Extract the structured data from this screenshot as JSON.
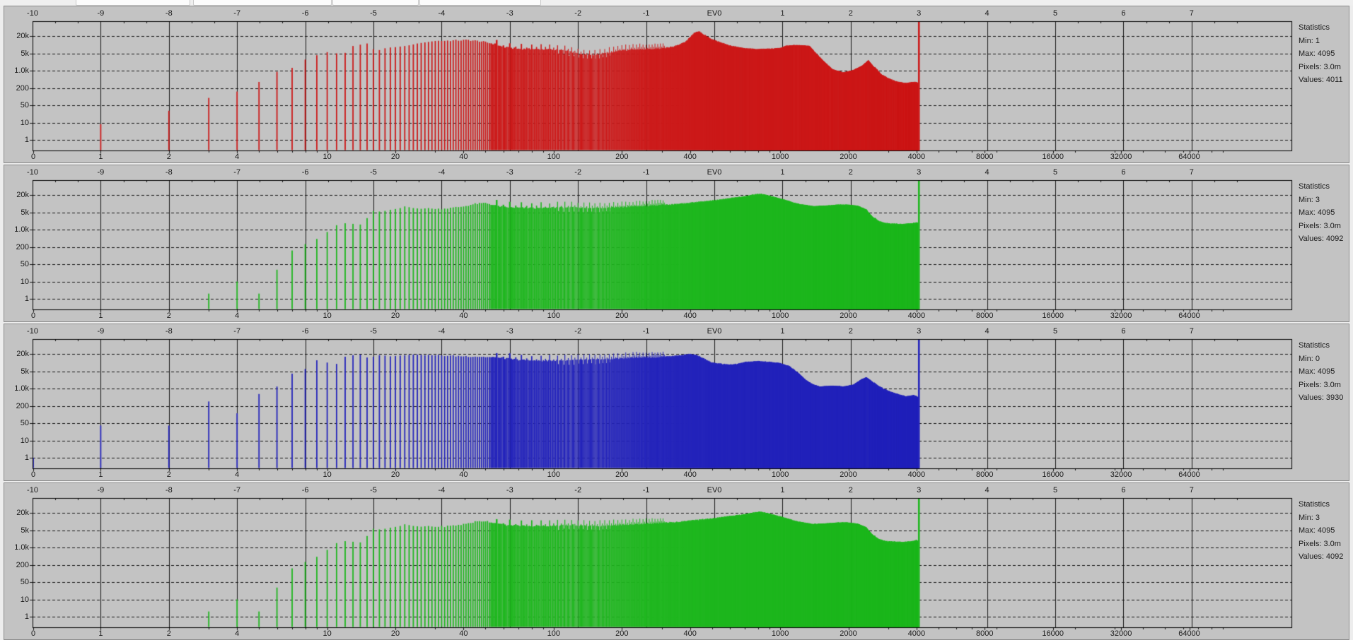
{
  "axes": {
    "top_ev": {
      "title": "exposure (EV) axis",
      "ticks": [
        [
          "-10",
          -10
        ],
        [
          "-9",
          -9
        ],
        [
          "-8",
          -8
        ],
        [
          "-7",
          -7
        ],
        [
          "-6",
          -6
        ],
        [
          "-5",
          -5
        ],
        [
          "-4",
          -4
        ],
        [
          "-3",
          -3
        ],
        [
          "-2",
          -2
        ],
        [
          "-1",
          -1
        ],
        [
          "EV0",
          0
        ],
        [
          "1",
          1
        ],
        [
          "2",
          2
        ],
        [
          "3",
          3
        ],
        [
          "4",
          4
        ],
        [
          "5",
          5
        ],
        [
          "6",
          6
        ],
        [
          "7",
          7
        ]
      ]
    },
    "left_counts": {
      "title": "pixel count axis (log)",
      "ticks": [
        [
          "20k",
          20000
        ],
        [
          "5k",
          5000
        ],
        [
          "1.0k",
          1000
        ],
        [
          "200",
          200
        ],
        [
          "50",
          50
        ],
        [
          "10",
          10
        ],
        [
          "1",
          1
        ]
      ]
    },
    "bottom_values": {
      "title": "raw value axis (log)",
      "ticks": [
        [
          "0",
          0
        ],
        [
          "1",
          1
        ],
        [
          "2",
          2
        ],
        [
          "4",
          4
        ],
        [
          "10",
          10
        ],
        [
          "20",
          20
        ],
        [
          "40",
          40
        ],
        [
          "100",
          100
        ],
        [
          "200",
          200
        ],
        [
          "400",
          400
        ],
        [
          "1000",
          1000
        ],
        [
          "2000",
          2000
        ],
        [
          "4000",
          4000
        ],
        [
          "8000",
          8000
        ],
        [
          "16000",
          16000
        ],
        [
          "32000",
          32000
        ],
        [
          "64000",
          64000
        ]
      ]
    }
  },
  "chart_data": [
    {
      "type": "histogram",
      "channel": "red",
      "color": "#cc1a1a",
      "seed": 1,
      "value_min": 1,
      "value_max": 4095,
      "stats_display": {
        "title": "Statistics",
        "min": "Min: 1",
        "max": "Max: 4095",
        "pixels": "Pixels: 3.0m",
        "values": "Values: 4011"
      },
      "spikes": [
        [
          1,
          8
        ],
        [
          2,
          30
        ],
        [
          3,
          90
        ],
        [
          4,
          150
        ],
        [
          5,
          350
        ],
        [
          6,
          900
        ],
        [
          7,
          1300
        ],
        [
          8,
          2800
        ],
        [
          9,
          4200
        ],
        [
          10,
          5500
        ],
        [
          11,
          5000
        ],
        [
          12,
          5200
        ],
        [
          13,
          9000
        ],
        [
          14,
          10000
        ],
        [
          15,
          11000
        ],
        [
          16,
          7000
        ],
        [
          17,
          6500
        ],
        [
          18,
          7500
        ],
        [
          19,
          8000
        ],
        [
          20,
          8200
        ],
        [
          21,
          8600
        ],
        [
          22,
          9000
        ],
        [
          23,
          9500
        ],
        [
          24,
          10200
        ],
        [
          25,
          11000
        ],
        [
          26,
          11500
        ],
        [
          27,
          12000
        ],
        [
          28,
          12500
        ],
        [
          29,
          13000
        ],
        [
          30,
          13500
        ]
      ],
      "envelope": [
        [
          30,
          13500
        ],
        [
          36,
          14000
        ],
        [
          42,
          14500
        ],
        [
          48,
          13000
        ],
        [
          55,
          10500
        ],
        [
          60,
          8200
        ],
        [
          70,
          7200
        ],
        [
          85,
          7000
        ],
        [
          100,
          6800
        ],
        [
          115,
          6000
        ],
        [
          130,
          4800
        ],
        [
          150,
          4300
        ],
        [
          165,
          4800
        ],
        [
          180,
          5400
        ],
        [
          200,
          6300
        ],
        [
          230,
          6800
        ],
        [
          260,
          7000
        ],
        [
          300,
          7300
        ],
        [
          340,
          8500
        ],
        [
          380,
          12000
        ],
        [
          420,
          26000
        ],
        [
          440,
          28000
        ],
        [
          470,
          20000
        ],
        [
          500,
          15000
        ],
        [
          540,
          12000
        ],
        [
          600,
          9000
        ],
        [
          700,
          7200
        ],
        [
          800,
          6800
        ],
        [
          900,
          7000
        ],
        [
          1000,
          7400
        ],
        [
          1060,
          8800
        ],
        [
          1150,
          9300
        ],
        [
          1250,
          9200
        ],
        [
          1350,
          8600
        ],
        [
          1450,
          4500
        ],
        [
          1550,
          2400
        ],
        [
          1700,
          1100
        ],
        [
          1900,
          800
        ],
        [
          2100,
          1000
        ],
        [
          2300,
          1500
        ],
        [
          2450,
          2500
        ],
        [
          2600,
          1300
        ],
        [
          2800,
          620
        ],
        [
          3000,
          430
        ],
        [
          3300,
          310
        ],
        [
          3600,
          270
        ],
        [
          3900,
          310
        ],
        [
          4050,
          290
        ],
        [
          4094,
          260
        ]
      ],
      "clip_spike": [
        4095,
        40000
      ]
    },
    {
      "type": "histogram",
      "channel": "green",
      "color": "#1fb71f",
      "seed": 2,
      "value_min": 3,
      "value_max": 4095,
      "stats_display": {
        "title": "Statistics",
        "min": "Min: 3",
        "max": "Max: 4095",
        "pixels": "Pixels: 3.0m",
        "values": "Values: 4092"
      },
      "spikes": [
        [
          3,
          2
        ],
        [
          4,
          10
        ],
        [
          5,
          2
        ],
        [
          6,
          30
        ],
        [
          7,
          150
        ],
        [
          8,
          260
        ],
        [
          9,
          420
        ],
        [
          10,
          800
        ],
        [
          11,
          1500
        ],
        [
          12,
          1800
        ],
        [
          13,
          1700
        ],
        [
          14,
          1600
        ],
        [
          15,
          2900
        ],
        [
          16,
          5600
        ],
        [
          17,
          5300
        ],
        [
          18,
          5600
        ],
        [
          19,
          6100
        ],
        [
          20,
          6500
        ],
        [
          21,
          7000
        ],
        [
          22,
          8000
        ],
        [
          23,
          7500
        ],
        [
          24,
          7000
        ],
        [
          25,
          6800
        ],
        [
          26,
          6600
        ],
        [
          27,
          6800
        ],
        [
          28,
          7000
        ],
        [
          29,
          6700
        ],
        [
          30,
          6500
        ]
      ],
      "envelope": [
        [
          30,
          6500
        ],
        [
          35,
          7000
        ],
        [
          40,
          8000
        ],
        [
          45,
          9800
        ],
        [
          50,
          10500
        ],
        [
          55,
          8800
        ],
        [
          60,
          7600
        ],
        [
          70,
          7200
        ],
        [
          85,
          7000
        ],
        [
          100,
          7200
        ],
        [
          120,
          7600
        ],
        [
          140,
          7200
        ],
        [
          160,
          7000
        ],
        [
          200,
          7600
        ],
        [
          250,
          8200
        ],
        [
          300,
          8800
        ],
        [
          350,
          9500
        ],
        [
          400,
          10500
        ],
        [
          450,
          11500
        ],
        [
          500,
          12500
        ],
        [
          560,
          14000
        ],
        [
          620,
          15500
        ],
        [
          700,
          17500
        ],
        [
          780,
          20500
        ],
        [
          820,
          21000
        ],
        [
          880,
          19000
        ],
        [
          950,
          16000
        ],
        [
          1050,
          13000
        ],
        [
          1200,
          9500
        ],
        [
          1400,
          7800
        ],
        [
          1600,
          8200
        ],
        [
          1800,
          8800
        ],
        [
          2000,
          8800
        ],
        [
          2200,
          8000
        ],
        [
          2400,
          6000
        ],
        [
          2550,
          3200
        ],
        [
          2700,
          2000
        ],
        [
          2900,
          1600
        ],
        [
          3200,
          1500
        ],
        [
          3500,
          1450
        ],
        [
          3800,
          1550
        ],
        [
          4000,
          1700
        ],
        [
          4094,
          1600
        ]
      ],
      "clip_spike": [
        4095,
        26000
      ]
    },
    {
      "type": "histogram",
      "channel": "blue",
      "color": "#2424bb",
      "seed": 3,
      "value_min": 0,
      "value_max": 4095,
      "stats_display": {
        "title": "Statistics",
        "min": "Min: 0",
        "max": "Max: 4095",
        "pixels": "Pixels: 3.0m",
        "values": "Values: 3930"
      },
      "spikes": [
        [
          0,
          1
        ],
        [
          1,
          40
        ],
        [
          2,
          40
        ],
        [
          3,
          300
        ],
        [
          4,
          110
        ],
        [
          5,
          600
        ],
        [
          6,
          1200
        ],
        [
          7,
          4000
        ],
        [
          8,
          6000
        ],
        [
          9,
          12000
        ],
        [
          10,
          10000
        ],
        [
          11,
          9000
        ],
        [
          12,
          16000
        ],
        [
          13,
          18000
        ],
        [
          14,
          19000
        ],
        [
          15,
          15000
        ],
        [
          16,
          16000
        ],
        [
          17,
          18000
        ],
        [
          18,
          17500
        ],
        [
          19,
          16500
        ],
        [
          20,
          17000
        ],
        [
          21,
          17500
        ],
        [
          22,
          18000
        ],
        [
          23,
          18500
        ],
        [
          24,
          19000
        ],
        [
          25,
          19000
        ],
        [
          26,
          18500
        ],
        [
          27,
          18000
        ],
        [
          28,
          18500
        ],
        [
          29,
          18000
        ],
        [
          30,
          18000
        ]
      ],
      "envelope": [
        [
          30,
          18000
        ],
        [
          36,
          17000
        ],
        [
          42,
          16500
        ],
        [
          48,
          16000
        ],
        [
          55,
          15000
        ],
        [
          60,
          14200
        ],
        [
          70,
          12500
        ],
        [
          85,
          11500
        ],
        [
          100,
          11800
        ],
        [
          120,
          12200
        ],
        [
          140,
          12600
        ],
        [
          170,
          13200
        ],
        [
          200,
          14000
        ],
        [
          240,
          15200
        ],
        [
          280,
          15000
        ],
        [
          320,
          16000
        ],
        [
          360,
          17500
        ],
        [
          400,
          19500
        ],
        [
          430,
          17500
        ],
        [
          470,
          12500
        ],
        [
          500,
          9800
        ],
        [
          550,
          8800
        ],
        [
          600,
          8300
        ],
        [
          650,
          8800
        ],
        [
          700,
          10200
        ],
        [
          800,
          10800
        ],
        [
          900,
          10200
        ],
        [
          1000,
          9200
        ],
        [
          1100,
          7200
        ],
        [
          1200,
          4200
        ],
        [
          1300,
          2100
        ],
        [
          1400,
          1400
        ],
        [
          1500,
          1150
        ],
        [
          1700,
          1250
        ],
        [
          1900,
          1150
        ],
        [
          2100,
          1350
        ],
        [
          2300,
          2300
        ],
        [
          2400,
          2700
        ],
        [
          2500,
          2100
        ],
        [
          2700,
          1150
        ],
        [
          3000,
          700
        ],
        [
          3300,
          520
        ],
        [
          3600,
          420
        ],
        [
          3900,
          470
        ],
        [
          4050,
          400
        ],
        [
          4094,
          350
        ]
      ],
      "clip_spike": [
        4095,
        30000
      ]
    },
    {
      "type": "histogram",
      "channel": "green2",
      "color": "#1fb71f",
      "seed": 4,
      "value_min": 3,
      "value_max": 4095,
      "stats_display": {
        "title": "Statistics",
        "min": "Min: 3",
        "max": "Max: 4095",
        "pixels": "Pixels: 3.0m",
        "values": "Values: 4092"
      },
      "spikes": [
        [
          3,
          2
        ],
        [
          4,
          10
        ],
        [
          5,
          2
        ],
        [
          6,
          30
        ],
        [
          7,
          150
        ],
        [
          8,
          260
        ],
        [
          9,
          420
        ],
        [
          10,
          800
        ],
        [
          11,
          1500
        ],
        [
          12,
          1800
        ],
        [
          13,
          1700
        ],
        [
          14,
          1600
        ],
        [
          15,
          2900
        ],
        [
          16,
          5600
        ],
        [
          17,
          5300
        ],
        [
          18,
          5600
        ],
        [
          19,
          6100
        ],
        [
          20,
          6500
        ],
        [
          21,
          7000
        ],
        [
          22,
          8000
        ],
        [
          23,
          7500
        ],
        [
          24,
          7000
        ],
        [
          25,
          6800
        ],
        [
          26,
          6600
        ],
        [
          27,
          6800
        ],
        [
          28,
          7000
        ],
        [
          29,
          6700
        ],
        [
          30,
          6500
        ]
      ],
      "envelope": [
        [
          30,
          6500
        ],
        [
          35,
          7000
        ],
        [
          40,
          8000
        ],
        [
          45,
          9800
        ],
        [
          50,
          10500
        ],
        [
          55,
          8800
        ],
        [
          60,
          7600
        ],
        [
          70,
          7200
        ],
        [
          85,
          7000
        ],
        [
          100,
          7200
        ],
        [
          120,
          7600
        ],
        [
          140,
          7200
        ],
        [
          160,
          7000
        ],
        [
          200,
          7600
        ],
        [
          250,
          8200
        ],
        [
          300,
          8800
        ],
        [
          350,
          9500
        ],
        [
          400,
          10500
        ],
        [
          450,
          11500
        ],
        [
          500,
          12500
        ],
        [
          560,
          14000
        ],
        [
          620,
          15500
        ],
        [
          700,
          17500
        ],
        [
          780,
          20500
        ],
        [
          820,
          21000
        ],
        [
          880,
          19000
        ],
        [
          950,
          16000
        ],
        [
          1050,
          13000
        ],
        [
          1200,
          9500
        ],
        [
          1400,
          7800
        ],
        [
          1600,
          8200
        ],
        [
          1800,
          8800
        ],
        [
          2000,
          8800
        ],
        [
          2200,
          8000
        ],
        [
          2400,
          6000
        ],
        [
          2550,
          3200
        ],
        [
          2700,
          2000
        ],
        [
          2900,
          1600
        ],
        [
          3200,
          1500
        ],
        [
          3500,
          1450
        ],
        [
          3800,
          1550
        ],
        [
          4000,
          1700
        ],
        [
          4094,
          1600
        ]
      ],
      "clip_spike": [
        4095,
        26000
      ]
    }
  ]
}
